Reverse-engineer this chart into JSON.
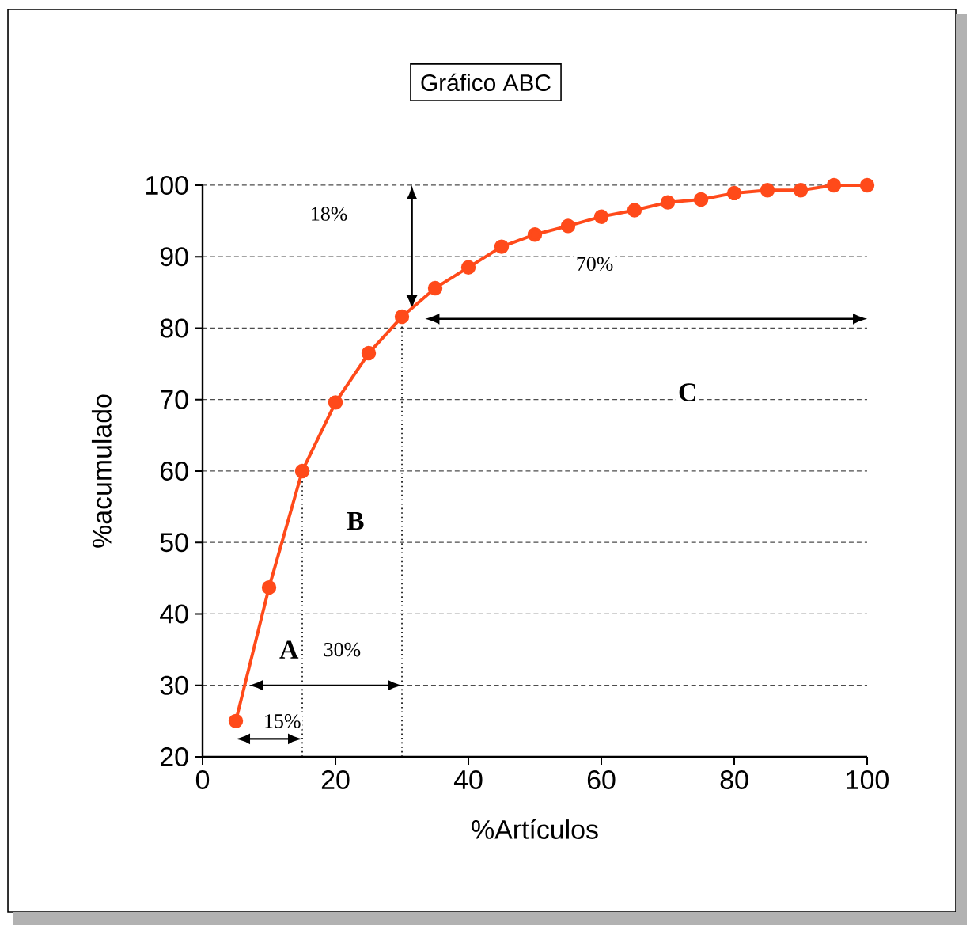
{
  "chart_data": {
    "type": "line",
    "title": "Gráfico  ABC",
    "xlabel": "%Artículos",
    "ylabel": "%acumulado",
    "x": [
      5,
      10,
      15,
      20,
      25,
      30,
      35,
      40,
      45,
      50,
      55,
      60,
      65,
      70,
      75,
      80,
      85,
      90,
      95,
      100
    ],
    "series": [
      {
        "color": "#ff4a1a",
        "values": [
          25,
          43.7,
          60,
          69.6,
          76.5,
          81.6,
          85.6,
          88.5,
          91.4,
          93.1,
          94.3,
          95.6,
          96.5,
          97.6,
          98,
          98.9,
          99.3,
          99.3,
          100,
          100
        ]
      }
    ],
    "xlim": [
      0,
      100
    ],
    "xticks": [
      0,
      20,
      40,
      60,
      80,
      100
    ],
    "ylim": [
      20,
      100
    ],
    "yticks": [
      20,
      30,
      40,
      50,
      60,
      70,
      80,
      90,
      100
    ],
    "grid": "y",
    "marker": "circle",
    "line_style": "solid",
    "ref_lines": [
      {
        "axis": "x",
        "value": 15,
        "line_style": "dotted"
      },
      {
        "axis": "x",
        "value": 30,
        "line_style": "dotted"
      }
    ],
    "annotations": [
      {
        "text": "A",
        "x": 13,
        "y": 35
      },
      {
        "text": "B",
        "x": 23,
        "y": 53
      },
      {
        "text": "C",
        "x": 73,
        "y": 71
      },
      {
        "text": "15%",
        "x": 12,
        "y": 25
      },
      {
        "text": "30%",
        "x": 21,
        "y": 35
      },
      {
        "text": "18%",
        "x": 19,
        "y": 96
      },
      {
        "text": "70%",
        "x": 59,
        "y": 89
      }
    ]
  }
}
